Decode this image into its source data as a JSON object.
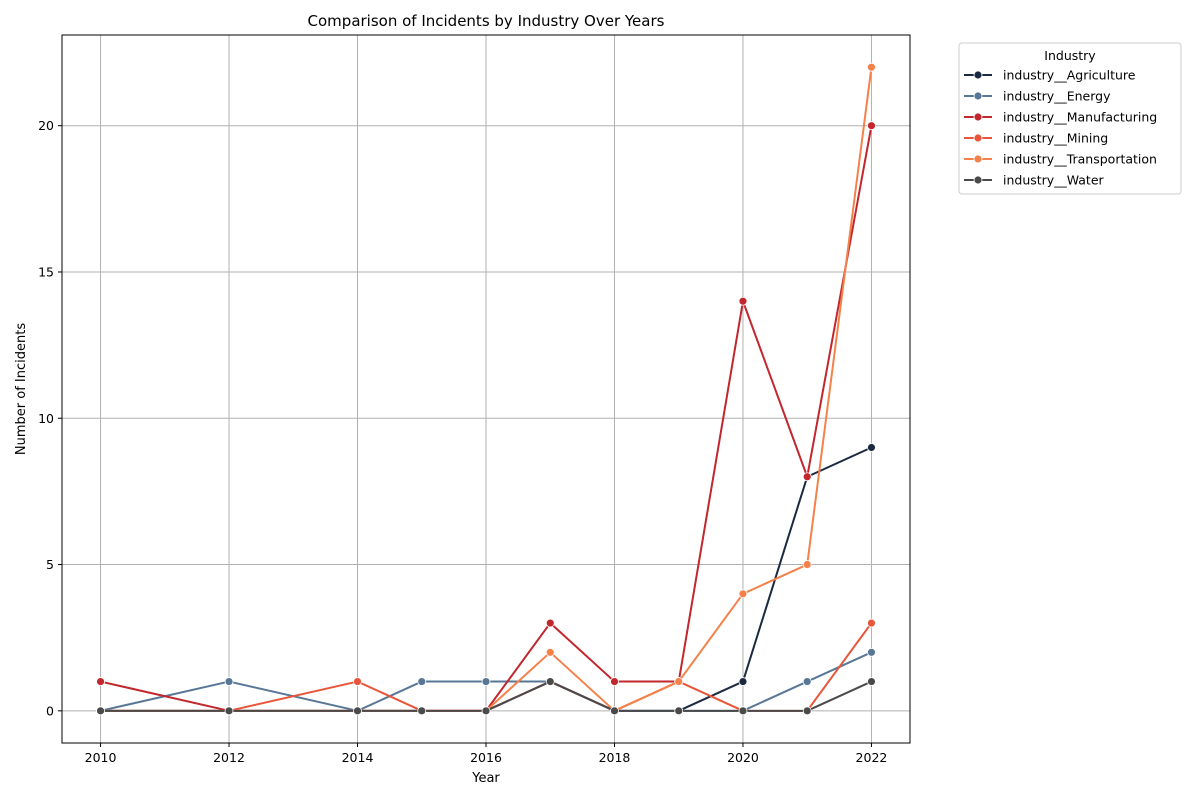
{
  "chart_data": {
    "type": "line",
    "title": "Comparison of Incidents by Industry Over Years",
    "xlabel": "Year",
    "ylabel": "Number of Incidents",
    "x": [
      2010,
      2012,
      2014,
      2015,
      2016,
      2017,
      2018,
      2019,
      2020,
      2021,
      2022
    ],
    "xticks": [
      2010,
      2012,
      2014,
      2016,
      2018,
      2020,
      2022
    ],
    "yticks": [
      0,
      5,
      10,
      15,
      20
    ],
    "xlim": [
      2009.4,
      2022.6
    ],
    "ylim": [
      -1.1,
      23.1
    ],
    "grid": true,
    "legend": {
      "title": "Industry",
      "placement": "outside-top-right"
    },
    "series": [
      {
        "name": "industry__Agriculture",
        "color": "#1b2a41",
        "values": [
          0,
          0,
          0,
          0,
          0,
          1,
          0,
          0,
          1,
          8,
          9
        ]
      },
      {
        "name": "industry__Energy",
        "color": "#587796",
        "values": [
          0,
          1,
          0,
          1,
          1,
          1,
          0,
          0,
          0,
          1,
          2
        ]
      },
      {
        "name": "industry__Manufacturing",
        "color": "#c1272d",
        "values": [
          1,
          0,
          0,
          0,
          0,
          3,
          1,
          1,
          14,
          8,
          20
        ]
      },
      {
        "name": "industry__Mining",
        "color": "#e8553a",
        "values": [
          0,
          0,
          1,
          0,
          0,
          1,
          0,
          1,
          0,
          0,
          3
        ]
      },
      {
        "name": "industry__Transportation",
        "color": "#f5814a",
        "values": [
          0,
          0,
          0,
          0,
          0,
          2,
          0,
          1,
          4,
          5,
          22
        ]
      },
      {
        "name": "industry__Water",
        "color": "#4a4a4a",
        "values": [
          0,
          0,
          0,
          0,
          0,
          1,
          0,
          0,
          0,
          0,
          1
        ]
      }
    ]
  }
}
